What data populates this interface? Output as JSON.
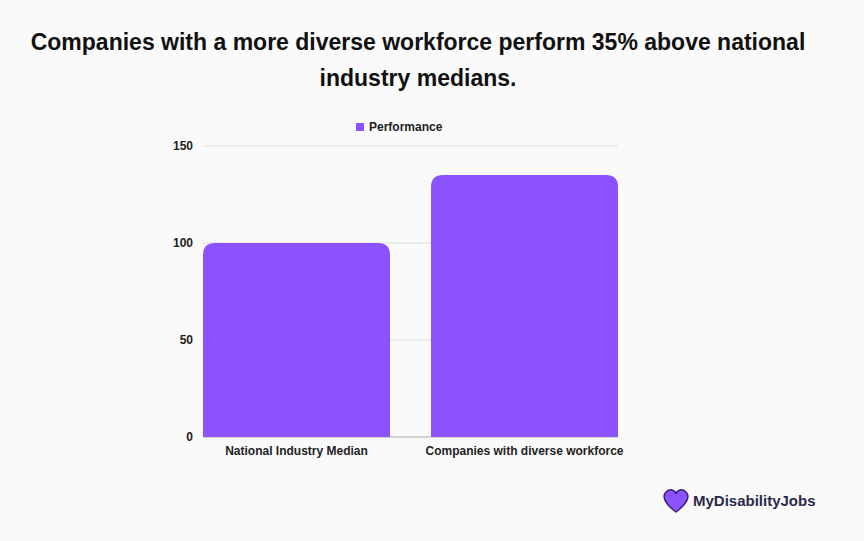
{
  "chart_data": {
    "type": "bar",
    "title": "Companies with a more diverse workforce perform 35% above national industry medians.",
    "categories": [
      "National Industry Median",
      "Companies with diverse workforce"
    ],
    "series": [
      {
        "name": "Performance",
        "color": "#8c52ff",
        "values": [
          100,
          135
        ]
      }
    ],
    "ylim": [
      0,
      150
    ],
    "yticks": [
      0,
      50,
      100,
      150
    ],
    "grid": true,
    "legend": "top",
    "annotations": [
      "MyDisabilityJobs"
    ]
  }
}
